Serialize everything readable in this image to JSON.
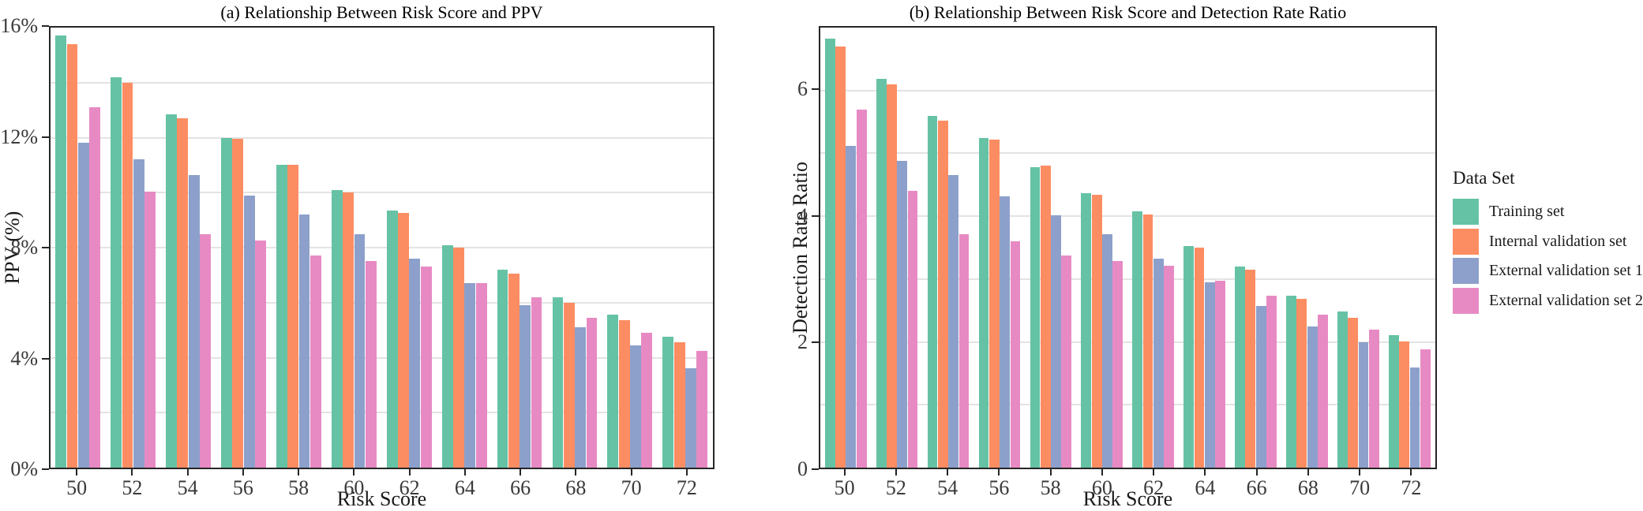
{
  "legend": {
    "title": "Data Set",
    "entries": [
      {
        "label": "Training set",
        "color": "#66C2A5"
      },
      {
        "label": "Internal validation set",
        "color": "#FC8D62"
      },
      {
        "label": "External validation set 1",
        "color": "#8DA0CB"
      },
      {
        "label": "External validation set 2",
        "color": "#E78AC3"
      }
    ]
  },
  "colors": {
    "training_set": "#66C2A5",
    "internal_validation_set": "#FC8D62",
    "external_validation_set_1": "#8DA0CB",
    "external_validation_set_2": "#E78AC3",
    "gridline": "#e3e3e3",
    "axis": "#262626"
  },
  "chart_data": [
    {
      "type": "bar",
      "title": "(a) Relationship Between Risk Score and PPV",
      "xlabel": "Risk Score",
      "ylabel": "PPV (%)",
      "categories": [
        "50",
        "52",
        "54",
        "56",
        "58",
        "60",
        "62",
        "64",
        "66",
        "68",
        "70",
        "72"
      ],
      "ylim": [
        0,
        16
      ],
      "grid_values": [
        2,
        4,
        6,
        8,
        10,
        12,
        14
      ],
      "yticks": [
        {
          "value": 0,
          "label": "0%"
        },
        {
          "value": 4,
          "label": "4%"
        },
        {
          "value": 8,
          "label": "8%"
        },
        {
          "value": 12,
          "label": "12%"
        },
        {
          "value": 16,
          "label": "16%"
        }
      ],
      "legend_position": "right-outside",
      "grid": true,
      "series": [
        {
          "name": "Training set",
          "color": "#66C2A5",
          "values": [
            15.7,
            14.2,
            12.85,
            12.0,
            11.0,
            10.1,
            9.35,
            8.1,
            7.2,
            6.2,
            5.55,
            4.75
          ]
        },
        {
          "name": "Internal validation set",
          "color": "#FC8D62",
          "values": [
            15.4,
            14.0,
            12.7,
            11.95,
            11.0,
            10.0,
            9.25,
            8.0,
            7.05,
            6.0,
            5.35,
            4.55
          ]
        },
        {
          "name": "External validation set 1",
          "color": "#8DA0CB",
          "values": [
            11.8,
            11.2,
            10.65,
            9.9,
            9.2,
            8.5,
            7.6,
            6.7,
            5.9,
            5.1,
            4.45,
            3.6
          ]
        },
        {
          "name": "External validation set 2",
          "color": "#E78AC3",
          "values": [
            13.1,
            10.05,
            8.5,
            8.25,
            7.7,
            7.5,
            7.3,
            6.7,
            6.2,
            5.45,
            4.9,
            4.25
          ]
        }
      ]
    },
    {
      "type": "bar",
      "title": "(b) Relationship Between Risk Score and Detection Rate Ratio",
      "xlabel": "Risk Score",
      "ylabel": "Detection Rate Ratio",
      "categories": [
        "50",
        "52",
        "54",
        "56",
        "58",
        "60",
        "62",
        "64",
        "66",
        "68",
        "70",
        "72"
      ],
      "ylim": [
        0,
        7
      ],
      "grid_values": [
        1,
        2,
        3,
        4,
        5,
        6
      ],
      "yticks": [
        {
          "value": 0,
          "label": "0"
        },
        {
          "value": 2,
          "label": "2"
        },
        {
          "value": 4,
          "label": "4"
        },
        {
          "value": 6,
          "label": "6"
        }
      ],
      "legend_position": "right-outside",
      "grid": true,
      "series": [
        {
          "name": "Training set",
          "color": "#66C2A5",
          "values": [
            6.82,
            6.18,
            5.6,
            5.25,
            4.78,
            4.37,
            4.08,
            3.52,
            3.2,
            2.74,
            2.48,
            2.11
          ]
        },
        {
          "name": "Internal validation set",
          "color": "#FC8D62",
          "values": [
            6.7,
            6.1,
            5.52,
            5.22,
            4.8,
            4.34,
            4.03,
            3.5,
            3.15,
            2.68,
            2.38,
            2.01
          ]
        },
        {
          "name": "External validation set 1",
          "color": "#8DA0CB",
          "values": [
            5.12,
            4.88,
            4.65,
            4.32,
            4.01,
            3.71,
            3.33,
            2.95,
            2.57,
            2.25,
            1.99,
            1.59
          ]
        },
        {
          "name": "External validation set 2",
          "color": "#E78AC3",
          "values": [
            5.7,
            4.4,
            3.71,
            3.6,
            3.37,
            3.29,
            3.21,
            2.97,
            2.74,
            2.43,
            2.19,
            1.88
          ]
        }
      ]
    }
  ]
}
